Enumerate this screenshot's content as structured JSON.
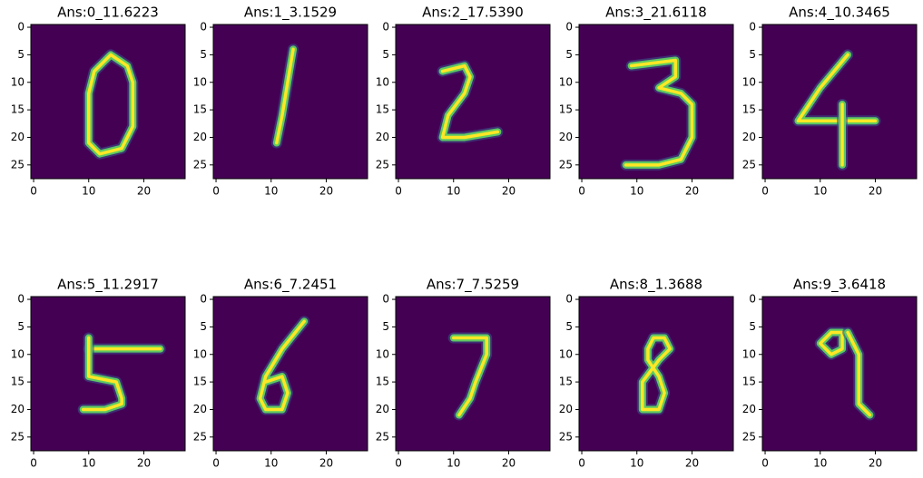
{
  "chart_data": [
    {
      "type": "image",
      "title": "Ans:0_11.6223",
      "xlim": [
        -0.5,
        27.5
      ],
      "ylim": [
        27.5,
        -0.5
      ],
      "xticks": [
        0,
        10,
        20
      ],
      "yticks": [
        0,
        5,
        10,
        15,
        20,
        25
      ]
    },
    {
      "type": "image",
      "title": "Ans:1_3.1529",
      "xlim": [
        -0.5,
        27.5
      ],
      "ylim": [
        27.5,
        -0.5
      ],
      "xticks": [
        0,
        10,
        20
      ],
      "yticks": [
        0,
        5,
        10,
        15,
        20,
        25
      ]
    },
    {
      "type": "image",
      "title": "Ans:2_17.5390",
      "xlim": [
        -0.5,
        27.5
      ],
      "ylim": [
        27.5,
        -0.5
      ],
      "xticks": [
        0,
        10,
        20
      ],
      "yticks": [
        0,
        5,
        10,
        15,
        20,
        25
      ]
    },
    {
      "type": "image",
      "title": "Ans:3_21.6118",
      "xlim": [
        -0.5,
        27.5
      ],
      "ylim": [
        27.5,
        -0.5
      ],
      "xticks": [
        0,
        10,
        20
      ],
      "yticks": [
        0,
        5,
        10,
        15,
        20,
        25
      ]
    },
    {
      "type": "image",
      "title": "Ans:4_10.3465",
      "xlim": [
        -0.5,
        27.5
      ],
      "ylim": [
        27.5,
        -0.5
      ],
      "xticks": [
        0,
        10,
        20
      ],
      "yticks": [
        0,
        5,
        10,
        15,
        20,
        25
      ]
    },
    {
      "type": "image",
      "title": "Ans:5_11.2917",
      "xlim": [
        -0.5,
        27.5
      ],
      "ylim": [
        27.5,
        -0.5
      ],
      "xticks": [
        0,
        10,
        20
      ],
      "yticks": [
        0,
        5,
        10,
        15,
        20,
        25
      ]
    },
    {
      "type": "image",
      "title": "Ans:6_7.2451",
      "xlim": [
        -0.5,
        27.5
      ],
      "ylim": [
        27.5,
        -0.5
      ],
      "xticks": [
        0,
        10,
        20
      ],
      "yticks": [
        0,
        5,
        10,
        15,
        20,
        25
      ]
    },
    {
      "type": "image",
      "title": "Ans:7_7.5259",
      "xlim": [
        -0.5,
        27.5
      ],
      "ylim": [
        27.5,
        -0.5
      ],
      "xticks": [
        0,
        10,
        20
      ],
      "yticks": [
        0,
        5,
        10,
        15,
        20,
        25
      ]
    },
    {
      "type": "image",
      "title": "Ans:8_1.3688",
      "xlim": [
        -0.5,
        27.5
      ],
      "ylim": [
        27.5,
        -0.5
      ],
      "xticks": [
        0,
        10,
        20
      ],
      "yticks": [
        0,
        5,
        10,
        15,
        20,
        25
      ]
    },
    {
      "type": "image",
      "title": "Ans:9_3.6418",
      "xlim": [
        -0.5,
        27.5
      ],
      "ylim": [
        27.5,
        -0.5
      ],
      "xticks": [
        0,
        10,
        20
      ],
      "yticks": [
        0,
        5,
        10,
        15,
        20,
        25
      ]
    }
  ]
}
